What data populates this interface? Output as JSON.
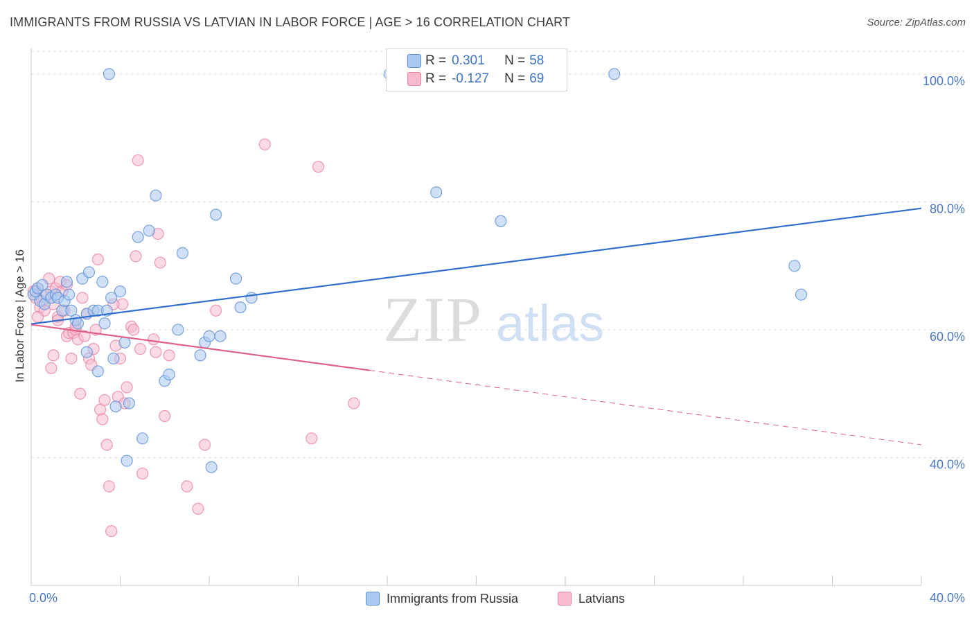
{
  "title": "IMMIGRANTS FROM RUSSIA VS LATVIAN IN LABOR FORCE | AGE > 16 CORRELATION CHART",
  "source": "Source: ZipAtlas.com",
  "watermark": {
    "zip": "ZIP",
    "atlas": "atlas"
  },
  "legend_stats": {
    "russia": {
      "r_label": "R =",
      "r_value": "0.301",
      "n_label": "N =",
      "n_value": "58"
    },
    "latvian": {
      "r_label": "R =",
      "r_value": "-0.127",
      "n_label": "N =",
      "n_value": "69"
    }
  },
  "colors": {
    "russia_fill": "#a9c9f0",
    "russia_stroke": "#5b8fd6",
    "russia_line": "#2f6fd0",
    "latvian_fill": "#f6bccd",
    "latvian_stroke": "#e8829f",
    "latvian_line": "#e0608a",
    "tick_text": "#4a78c2",
    "grid": "#dcdcdc"
  },
  "chart_data": {
    "type": "scatter",
    "xlabel": "",
    "ylabel": "In Labor Force | Age > 16",
    "xlim": [
      0,
      40
    ],
    "ylim": [
      20,
      104
    ],
    "x_tick_labels": [
      "0.0%",
      "40.0%"
    ],
    "y_ticks": [
      40,
      60,
      80,
      100
    ],
    "y_tick_labels": [
      "40.0%",
      "60.0%",
      "80.0%",
      "100.0%"
    ],
    "grid": "horizontal dashed",
    "legend": "bottom-center",
    "series": [
      {
        "name": "Immigrants from Russia",
        "trend": {
          "x0": 0,
          "y0": 60.9,
          "x1": 40,
          "y1": 79.0,
          "dashed_from": null
        },
        "points": [
          [
            0.1,
            65.5
          ],
          [
            0.2,
            66.0
          ],
          [
            0.3,
            66.5
          ],
          [
            0.4,
            64.5
          ],
          [
            0.5,
            67.0
          ],
          [
            0.6,
            64.0
          ],
          [
            0.7,
            65.5
          ],
          [
            0.9,
            65.0
          ],
          [
            1.1,
            65.5
          ],
          [
            1.2,
            65.0
          ],
          [
            1.4,
            63.0
          ],
          [
            1.5,
            64.5
          ],
          [
            1.6,
            67.5
          ],
          [
            1.7,
            65.5
          ],
          [
            1.8,
            63.0
          ],
          [
            2.0,
            61.5
          ],
          [
            2.1,
            61.0
          ],
          [
            2.3,
            68.0
          ],
          [
            2.5,
            62.5
          ],
          [
            2.5,
            56.5
          ],
          [
            2.6,
            69.0
          ],
          [
            2.8,
            63.0
          ],
          [
            3.0,
            63.0
          ],
          [
            3.0,
            53.5
          ],
          [
            3.2,
            67.5
          ],
          [
            3.3,
            61.0
          ],
          [
            3.4,
            63.0
          ],
          [
            3.6,
            65.0
          ],
          [
            3.7,
            55.5
          ],
          [
            3.8,
            48.0
          ],
          [
            4.0,
            66.0
          ],
          [
            4.2,
            58.0
          ],
          [
            4.4,
            48.5
          ],
          [
            4.3,
            39.5
          ],
          [
            4.8,
            74.5
          ],
          [
            5.0,
            43.0
          ],
          [
            5.3,
            75.5
          ],
          [
            5.6,
            81.0
          ],
          [
            6.0,
            52.0
          ],
          [
            6.2,
            53.0
          ],
          [
            6.6,
            60.0
          ],
          [
            6.8,
            72.0
          ],
          [
            7.6,
            56.0
          ],
          [
            7.8,
            58.0
          ],
          [
            8.0,
            59.0
          ],
          [
            8.1,
            38.5
          ],
          [
            8.3,
            78.0
          ],
          [
            8.5,
            59.0
          ],
          [
            9.2,
            68.0
          ],
          [
            9.4,
            63.5
          ],
          [
            9.9,
            65.0
          ],
          [
            16.1,
            100.0
          ],
          [
            18.2,
            81.5
          ],
          [
            21.1,
            77.0
          ],
          [
            26.2,
            100.0
          ],
          [
            34.3,
            70.0
          ],
          [
            34.6,
            65.5
          ],
          [
            3.5,
            100.0
          ]
        ]
      },
      {
        "name": "Latvians",
        "trend": {
          "x0": 0,
          "y0": 60.8,
          "x1": 40,
          "y1": 42.0,
          "dashed_from": 15.2
        },
        "points": [
          [
            0.1,
            66.0
          ],
          [
            0.2,
            65.0
          ],
          [
            0.3,
            66.5
          ],
          [
            0.4,
            63.5
          ],
          [
            0.5,
            64.5
          ],
          [
            0.6,
            63.0
          ],
          [
            0.7,
            65.5
          ],
          [
            0.8,
            68.0
          ],
          [
            0.9,
            66.0
          ],
          [
            1.0,
            64.0
          ],
          [
            1.1,
            66.5
          ],
          [
            1.2,
            62.0
          ],
          [
            1.3,
            67.5
          ],
          [
            1.4,
            66.0
          ],
          [
            1.5,
            63.0
          ],
          [
            1.6,
            59.0
          ],
          [
            1.7,
            59.5
          ],
          [
            1.8,
            55.5
          ],
          [
            1.9,
            59.5
          ],
          [
            2.0,
            60.0
          ],
          [
            2.1,
            58.5
          ],
          [
            2.2,
            50.0
          ],
          [
            2.3,
            65.0
          ],
          [
            2.5,
            62.5
          ],
          [
            2.6,
            55.5
          ],
          [
            2.7,
            54.5
          ],
          [
            2.8,
            57.0
          ],
          [
            2.9,
            60.0
          ],
          [
            3.0,
            71.0
          ],
          [
            3.1,
            47.5
          ],
          [
            3.2,
            46.0
          ],
          [
            3.3,
            49.0
          ],
          [
            3.4,
            42.0
          ],
          [
            3.5,
            35.5
          ],
          [
            3.6,
            28.5
          ],
          [
            3.8,
            57.5
          ],
          [
            3.9,
            49.5
          ],
          [
            4.0,
            55.5
          ],
          [
            4.1,
            64.0
          ],
          [
            4.2,
            48.5
          ],
          [
            4.3,
            51.0
          ],
          [
            4.5,
            60.5
          ],
          [
            4.7,
            71.5
          ],
          [
            4.8,
            86.5
          ],
          [
            4.9,
            57.0
          ],
          [
            5.0,
            37.5
          ],
          [
            5.5,
            58.5
          ],
          [
            5.6,
            56.5
          ],
          [
            5.7,
            75.0
          ],
          [
            5.8,
            70.5
          ],
          [
            6.0,
            46.5
          ],
          [
            6.2,
            56.0
          ],
          [
            7.0,
            35.5
          ],
          [
            7.5,
            32.0
          ],
          [
            7.8,
            42.0
          ],
          [
            8.3,
            63.0
          ],
          [
            10.5,
            89.0
          ],
          [
            12.9,
            85.5
          ],
          [
            12.6,
            43.0
          ],
          [
            14.5,
            48.5
          ],
          [
            0.3,
            62.0
          ],
          [
            0.9,
            54.0
          ],
          [
            1.2,
            61.5
          ],
          [
            1.6,
            67.0
          ],
          [
            2.0,
            60.5
          ],
          [
            2.4,
            59.0
          ],
          [
            3.7,
            64.0
          ],
          [
            4.6,
            60.0
          ],
          [
            1.0,
            56.0
          ]
        ]
      }
    ]
  }
}
